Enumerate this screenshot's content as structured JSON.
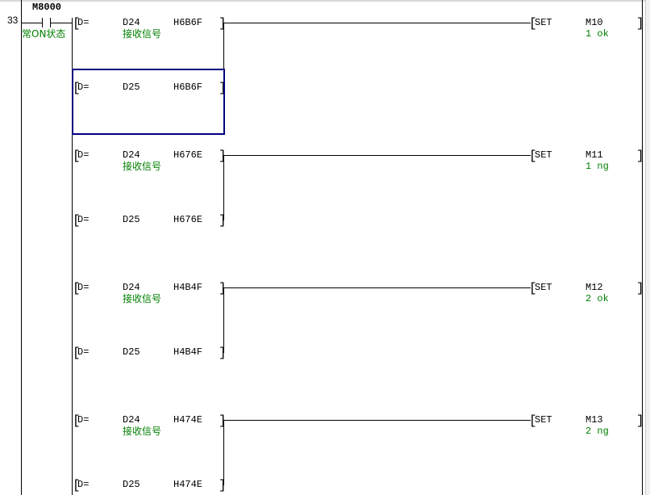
{
  "step_number": "33",
  "contact": {
    "device": "M8000",
    "comment": "常ON状态"
  },
  "colors": {
    "comment": "#008000",
    "selection": "#000080"
  },
  "rungs": [
    {
      "cmp1": {
        "op": "D=",
        "src": "D24",
        "val": "H6B6F",
        "comment": "接收信号"
      },
      "cmp2": {
        "op": "D=",
        "src": "D25",
        "val": "H6B6F"
      },
      "coil": {
        "instr": "SET",
        "dev": "M10",
        "comment": "1 ok"
      }
    },
    {
      "cmp1": {
        "op": "D=",
        "src": "D24",
        "val": "H676E",
        "comment": "接收信号"
      },
      "cmp2": {
        "op": "D=",
        "src": "D25",
        "val": "H676E"
      },
      "coil": {
        "instr": "SET",
        "dev": "M11",
        "comment": "1 ng"
      }
    },
    {
      "cmp1": {
        "op": "D=",
        "src": "D24",
        "val": "H4B4F",
        "comment": "接收信号"
      },
      "cmp2": {
        "op": "D=",
        "src": "D25",
        "val": "H4B4F"
      },
      "coil": {
        "instr": "SET",
        "dev": "M12",
        "comment": "2 ok"
      }
    },
    {
      "cmp1": {
        "op": "D=",
        "src": "D24",
        "val": "H474E",
        "comment": "接收信号"
      },
      "cmp2": {
        "op": "D=",
        "src": "D25",
        "val": "H474E"
      },
      "coil": {
        "instr": "SET",
        "dev": "M13",
        "comment": "2 ng"
      }
    }
  ]
}
